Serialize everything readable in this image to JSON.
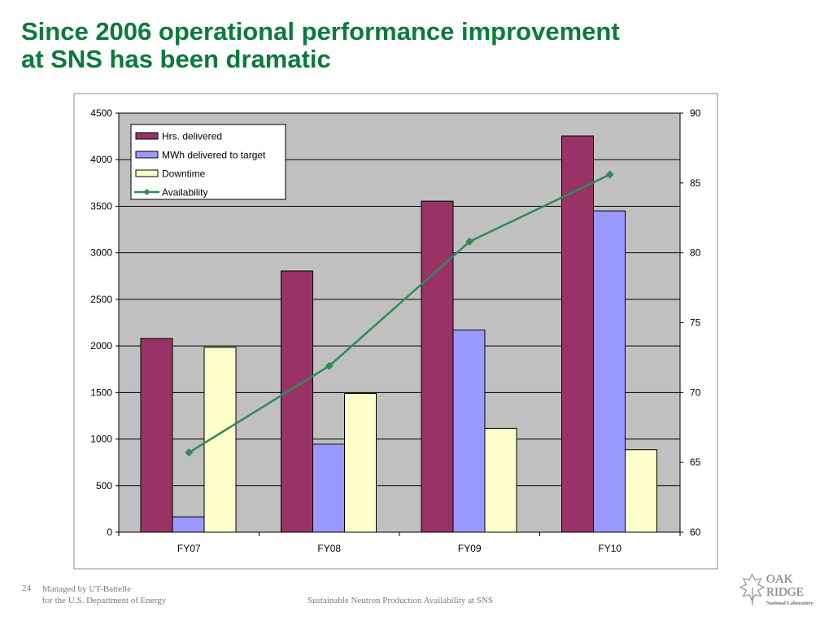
{
  "slide": {
    "title_line1": "Since 2006 operational performance improvement",
    "title_line2": "at SNS has been dramatic",
    "page_number": "24",
    "managed_line1": "Managed by UT-Battelle",
    "managed_line2": "for the U.S. Department of Energy",
    "footer_center": "Sustainable Neutron Production Availability at SNS",
    "logo": {
      "line1": "OAK",
      "line2": "RIDGE",
      "line3": "National Laboratory"
    }
  },
  "colors": {
    "title": "#0b7a3c",
    "hrs": "#993366",
    "mwh": "#9999ff",
    "downtime": "#ffffcc",
    "availability": "#2e8b57",
    "plot_bg": "#c0c0c0"
  },
  "chart_data": {
    "type": "bar",
    "categories": [
      "FY07",
      "FY08",
      "FY09",
      "FY10"
    ],
    "series": [
      {
        "name": "Hrs. delivered",
        "axis": "left",
        "type": "bar",
        "values": [
          2080,
          2805,
          3555,
          4255
        ]
      },
      {
        "name": "MWh delivered to target",
        "axis": "left",
        "type": "bar",
        "values": [
          165,
          945,
          2170,
          3450
        ]
      },
      {
        "name": "Downtime",
        "axis": "left",
        "type": "bar",
        "values": [
          1985,
          1490,
          1115,
          885
        ]
      },
      {
        "name": "Availability",
        "axis": "right",
        "type": "line",
        "values": [
          65.7,
          71.9,
          80.8,
          85.6
        ]
      }
    ],
    "ylim_left": [
      0,
      4500
    ],
    "yticks_left": [
      0,
      500,
      1000,
      1500,
      2000,
      2500,
      3000,
      3500,
      4000,
      4500
    ],
    "ylim_right": [
      60,
      90
    ],
    "yticks_right": [
      60,
      65,
      70,
      75,
      80,
      85,
      90
    ],
    "grid": true,
    "legend_position": "top-left"
  }
}
